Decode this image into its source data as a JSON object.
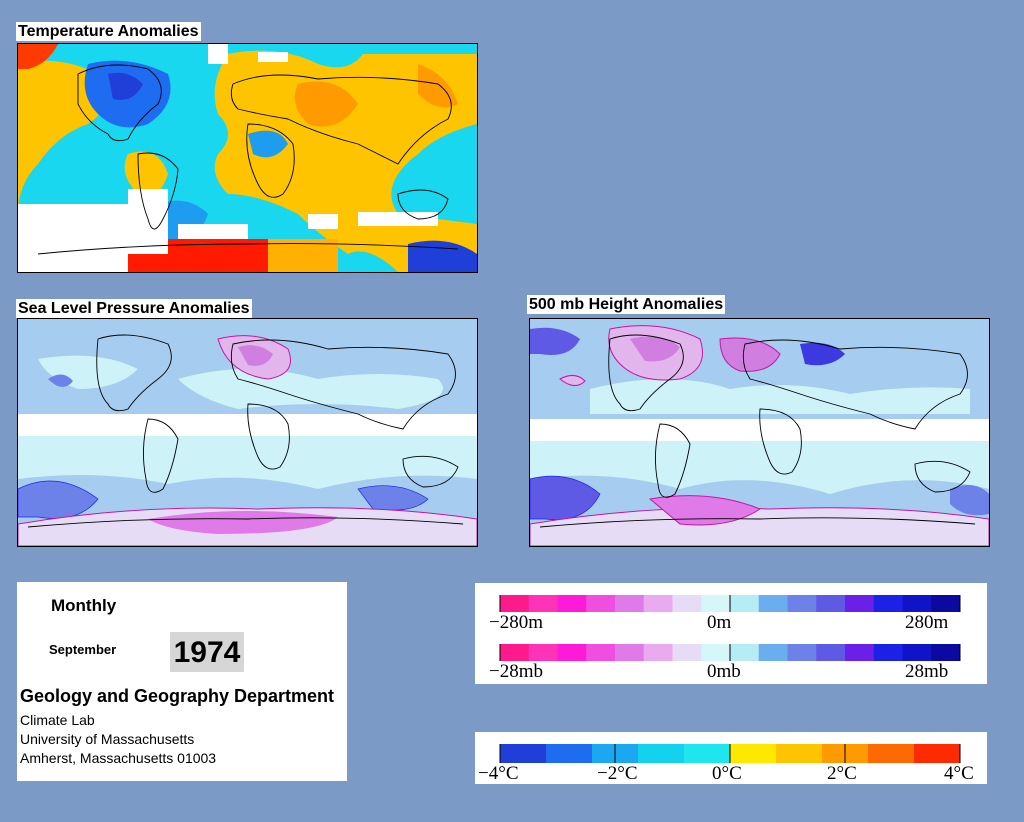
{
  "panels": {
    "temperature": {
      "title": "Temperature Anomalies"
    },
    "slp": {
      "title": "Sea Level Pressure Anomalies"
    },
    "height": {
      "title": "500 mb Height Anomalies"
    }
  },
  "info": {
    "period": "Monthly",
    "month": "September",
    "year": "1974",
    "department": "Geology and Geography Department",
    "lab": "Climate Lab",
    "university": "University of Massachusetts",
    "address": "Amherst, Massachusetts 01003"
  },
  "legends": {
    "height": {
      "labels": {
        "min": "−280m",
        "mid": "0m",
        "max": "280m"
      },
      "colors": [
        "#ff1a8c",
        "#ff33b8",
        "#ff1ad9",
        "#f04ee0",
        "#df7ae8",
        "#eaaaf0",
        "#e6dcf6",
        "#d6f7fa",
        "#b6ecf3",
        "#6aaef0",
        "#6d82e8",
        "#5e5ae6",
        "#6b20ea",
        "#1b22e6",
        "#0f14c8",
        "#0a0aa0"
      ]
    },
    "pressure": {
      "labels": {
        "min": "−28mb",
        "mid": "0mb",
        "max": "28mb"
      },
      "colors": [
        "#ff1a8c",
        "#ff33b8",
        "#ff1ad9",
        "#f04ee0",
        "#df7ae8",
        "#eaaaf0",
        "#e6dcf6",
        "#d6f7fa",
        "#b6ecf3",
        "#6aaef0",
        "#6d82e8",
        "#5e5ae6",
        "#6b20ea",
        "#1b22e6",
        "#0f14c8",
        "#0a0aa0"
      ]
    },
    "temperature": {
      "labels": [
        "−4°C",
        "−2°C",
        "0°C",
        "2°C",
        "4°C"
      ],
      "colors": [
        "#1f3fd8",
        "#1e6cf0",
        "#1aa8f0",
        "#12d2ee",
        "#1ee6ee",
        "#ffe800",
        "#ffc400",
        "#ff9a00",
        "#ff6a00",
        "#ff2a00"
      ]
    }
  },
  "palette": {
    "background": "#7b9ac5",
    "map_ocean_light": "#cdf3f8",
    "map_ocean_mid": "#a6cdf0",
    "temp_cyan": "#1ad7f0",
    "temp_orange": "#ffb000"
  }
}
